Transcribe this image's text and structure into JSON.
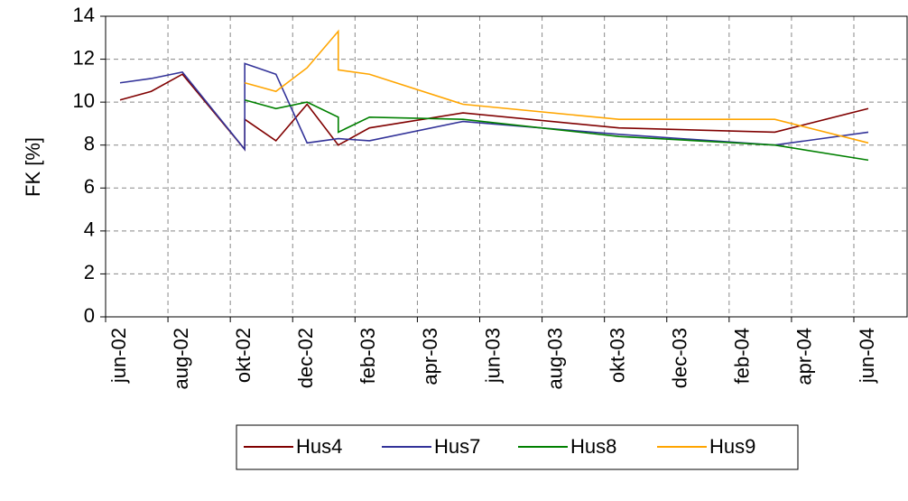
{
  "chart_data": {
    "type": "line",
    "y_label": "FK [%]",
    "xticks": [
      "2002-06",
      "2002-08",
      "2002-10",
      "2002-12",
      "2003-02",
      "2003-04",
      "2003-06",
      "2003-08",
      "2003-10",
      "2003-12",
      "2004-02",
      "2004-04",
      "2004-06"
    ],
    "xtick_labels": [
      "jun-02",
      "aug-02",
      "okt-02",
      "dec-02",
      "feb-03",
      "apr-03",
      "jun-03",
      "aug-03",
      "okt-03",
      "dec-03",
      "feb-04",
      "apr-04",
      "jun-04"
    ],
    "xlim": [
      "2002-06",
      "2004-06"
    ],
    "ylim": [
      0,
      14
    ],
    "yticks": [
      0,
      2,
      4,
      6,
      8,
      10,
      12,
      14
    ],
    "grid": true,
    "legend": "bottom",
    "series": [
      {
        "name": "Hus4",
        "color": "#800000",
        "x": [
          "2002-06",
          "2002-07",
          "2002-08",
          "2002-10",
          "2002-10",
          "2002-11",
          "2002-12",
          "2003-01",
          "2003-02",
          "2003-05",
          "2003-10",
          "2004-03",
          "2004-06"
        ],
        "values": [
          10.1,
          10.5,
          11.3,
          7.8,
          9.2,
          8.2,
          9.9,
          8.0,
          8.8,
          9.5,
          8.8,
          8.6,
          9.7
        ]
      },
      {
        "name": "Hus7",
        "color": "#333399",
        "x": [
          "2002-06",
          "2002-07",
          "2002-08",
          "2002-10",
          "2002-10",
          "2002-11",
          "2002-12",
          "2003-01",
          "2003-02",
          "2003-05",
          "2003-10",
          "2004-03",
          "2004-06"
        ],
        "values": [
          10.9,
          11.1,
          11.4,
          7.8,
          11.8,
          11.3,
          8.1,
          8.3,
          8.2,
          9.1,
          8.5,
          8.0,
          8.6
        ]
      },
      {
        "name": "Hus8",
        "color": "#008000",
        "x": [
          "2002-10",
          "2002-11",
          "2002-12",
          "2003-01",
          "2003-01",
          "2003-02",
          "2003-05",
          "2003-10",
          "2004-03",
          "2004-06"
        ],
        "values": [
          10.1,
          9.7,
          10.0,
          9.3,
          8.6,
          9.3,
          9.2,
          8.4,
          8.0,
          7.3
        ]
      },
      {
        "name": "Hus9",
        "color": "#ffa500",
        "x": [
          "2002-10",
          "2002-11",
          "2002-12",
          "2003-01",
          "2003-01",
          "2003-02",
          "2003-05",
          "2003-10",
          "2004-03",
          "2004-06"
        ],
        "values": [
          10.9,
          10.5,
          11.6,
          13.3,
          11.5,
          11.3,
          9.9,
          9.2,
          9.2,
          8.1
        ]
      }
    ]
  }
}
